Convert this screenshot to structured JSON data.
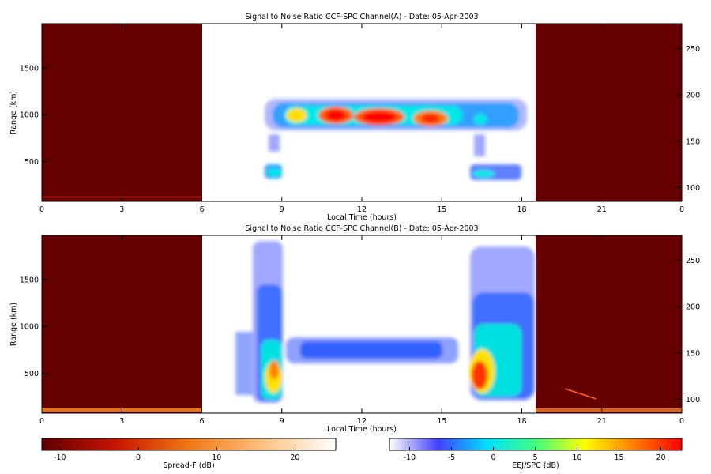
{
  "chart_data": [
    {
      "type": "heatmap",
      "title": "Signal to Noise Ratio CCF-SPC Channel(A) - Date: 05-Apr-2003",
      "xlabel": "Local Time (hours)",
      "ylabel": "Range (km)",
      "xlim": [
        0,
        24
      ],
      "xticks": [
        0,
        3,
        6,
        9,
        12,
        15,
        18,
        21,
        {
          "value": 24,
          "label": "0"
        }
      ],
      "ylim": [
        76,
        1970
      ],
      "yticks": [
        500,
        1000,
        1500
      ],
      "y2lim": [
        85,
        277
      ],
      "y2ticks": [
        100,
        150,
        200,
        250
      ]
    },
    {
      "type": "heatmap",
      "title": "Signal to Noise Ratio CCF-SPC Channel(B) - Date: 05-Apr-2003",
      "xlabel": "Local Time (hours)",
      "ylabel": "Range (km)",
      "xlim": [
        0,
        24
      ],
      "xticks": [
        0,
        3,
        6,
        9,
        12,
        15,
        18,
        21,
        {
          "value": 24,
          "label": "0"
        }
      ],
      "ylim": [
        76,
        1970
      ],
      "yticks": [
        500,
        1000,
        1500
      ],
      "y2lim": [
        85,
        277
      ],
      "y2ticks": [
        100,
        150,
        200,
        250
      ]
    }
  ],
  "colorbars": [
    {
      "label": "Spread-F (dB)",
      "lim": [
        -12.3,
        25.2
      ],
      "ticks": [
        -10,
        0,
        10,
        20
      ],
      "colors": [
        "#600000",
        "#c81400",
        "#f07814",
        "#ffc080",
        "#ffffff"
      ]
    },
    {
      "label": "EEJ/SPC (dB)",
      "lim": [
        -12.4,
        22.5
      ],
      "ticks": [
        -10,
        -5,
        0,
        5,
        10,
        15,
        20
      ],
      "colors": [
        "#ffffff",
        "#4040ff",
        "#00e0ff",
        "#40ff80",
        "#ffff00",
        "#ff8000",
        "#ff0000"
      ]
    }
  ]
}
